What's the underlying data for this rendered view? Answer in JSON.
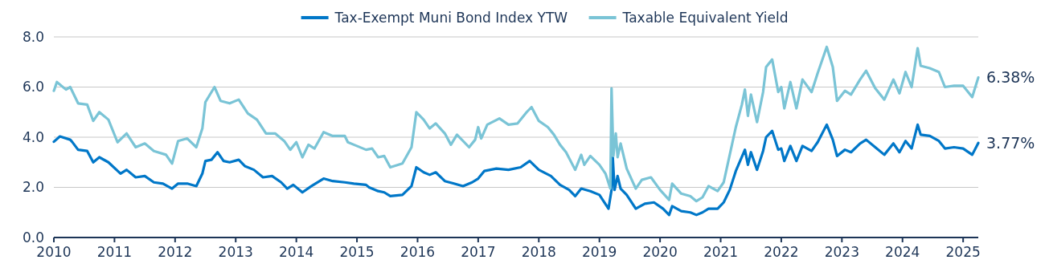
{
  "chart_data": {
    "type": "line",
    "xlim": [
      2010,
      2025.25
    ],
    "xticks": [
      2010,
      2011,
      2012,
      2013,
      2014,
      2015,
      2016,
      2017,
      2018,
      2019,
      2020,
      2021,
      2022,
      2023,
      2024,
      2025
    ],
    "ylim": [
      0,
      8
    ],
    "yticks": [
      {
        "value": 0,
        "label": "0.0"
      },
      {
        "value": 2,
        "label": "2.0"
      },
      {
        "value": 4,
        "label": "4.0"
      },
      {
        "value": 6,
        "label": "6.0"
      },
      {
        "value": 8,
        "label": "8.0"
      }
    ],
    "grid": "y",
    "legend": "top",
    "marker": "none",
    "line_style": "solid",
    "annotations": [
      {
        "text": "6.38%",
        "x": 2025.25,
        "y": 6.38
      },
      {
        "text": "3.77%",
        "x": 2025.25,
        "y": 3.77
      }
    ],
    "series": [
      {
        "name": "Tax-Exempt Muni Bond Index YTW",
        "color": "#0077c8",
        "x": [
          2010,
          2010.1,
          2010.27,
          2010.3,
          2010.4,
          2010.55,
          2010.65,
          2010.75,
          2010.9,
          2011.1,
          2011.2,
          2011.35,
          2011.5,
          2011.65,
          2011.8,
          2011.95,
          2012.05,
          2012.2,
          2012.35,
          2012.45,
          2012.5,
          2012.6,
          2012.7,
          2012.8,
          2012.9,
          2013.05,
          2013.15,
          2013.3,
          2013.45,
          2013.6,
          2013.75,
          2013.85,
          2013.95,
          2014.1,
          2014.25,
          2014.45,
          2014.6,
          2014.8,
          2014.95,
          2015.15,
          2015.2,
          2015.35,
          2015.45,
          2015.55,
          2015.75,
          2015.9,
          2015.98,
          2016.1,
          2016.2,
          2016.3,
          2016.45,
          2016.6,
          2016.75,
          2016.9,
          2017,
          2017.1,
          2017.3,
          2017.5,
          2017.7,
          2017.85,
          2018,
          2018.2,
          2018.35,
          2018.5,
          2018.6,
          2018.7,
          2018.85,
          2019,
          2019.15,
          2019.2,
          2019.22,
          2019.25,
          2019.3,
          2019.35,
          2019.45,
          2019.6,
          2019.75,
          2019.9,
          2020.05,
          2020.15,
          2020.2,
          2020.35,
          2020.5,
          2020.6,
          2020.7,
          2020.8,
          2020.95,
          2021.05,
          2021.15,
          2021.25,
          2021.4,
          2021.45,
          2021.5,
          2021.6,
          2021.7,
          2021.75,
          2021.85,
          2021.95,
          2022,
          2022.05,
          2022.15,
          2022.25,
          2022.35,
          2022.5,
          2022.6,
          2022.75,
          2022.85,
          2022.92,
          2023.05,
          2023.15,
          2023.3,
          2023.4,
          2023.55,
          2023.7,
          2023.85,
          2023.95,
          2024.05,
          2024.15,
          2024.25,
          2024.3,
          2024.45,
          2024.6,
          2024.7,
          2024.85,
          2025,
          2025.15,
          2025.25
        ],
        "values": [
          3.82,
          4.03,
          3.9,
          3.82,
          3.5,
          3.45,
          3.0,
          3.2,
          3.0,
          2.55,
          2.7,
          2.4,
          2.45,
          2.2,
          2.15,
          1.95,
          2.15,
          2.15,
          2.05,
          2.55,
          3.05,
          3.1,
          3.4,
          3.05,
          3.0,
          3.1,
          2.85,
          2.7,
          2.4,
          2.45,
          2.2,
          1.95,
          2.1,
          1.8,
          2.05,
          2.35,
          2.25,
          2.2,
          2.15,
          2.1,
          2.0,
          1.85,
          1.8,
          1.65,
          1.7,
          2.05,
          2.8,
          2.6,
          2.5,
          2.6,
          2.25,
          2.15,
          2.05,
          2.2,
          2.35,
          2.65,
          2.75,
          2.7,
          2.8,
          3.05,
          2.7,
          2.45,
          2.1,
          1.9,
          1.65,
          1.95,
          1.85,
          1.7,
          1.15,
          1.9,
          3.2,
          1.9,
          2.45,
          1.95,
          1.7,
          1.15,
          1.35,
          1.4,
          1.15,
          0.9,
          1.25,
          1.05,
          1.0,
          0.9,
          1.0,
          1.15,
          1.15,
          1.4,
          1.9,
          2.65,
          3.5,
          2.9,
          3.4,
          2.7,
          3.45,
          4.0,
          4.25,
          3.5,
          3.55,
          3.05,
          3.65,
          3.05,
          3.65,
          3.45,
          3.8,
          4.5,
          3.9,
          3.25,
          3.5,
          3.4,
          3.75,
          3.9,
          3.6,
          3.3,
          3.75,
          3.4,
          3.85,
          3.55,
          4.5,
          4.1,
          4.05,
          3.85,
          3.55,
          3.6,
          3.55,
          3.3,
          3.77
        ]
      },
      {
        "name": "Taxable Equivalent Yield",
        "color": "#7ac4d6",
        "x": [
          2010,
          2010.05,
          2010.2,
          2010.27,
          2010.4,
          2010.55,
          2010.65,
          2010.75,
          2010.9,
          2011.05,
          2011.2,
          2011.35,
          2011.5,
          2011.65,
          2011.85,
          2011.95,
          2012.05,
          2012.2,
          2012.35,
          2012.45,
          2012.5,
          2012.65,
          2012.75,
          2012.9,
          2013.05,
          2013.2,
          2013.35,
          2013.5,
          2013.65,
          2013.8,
          2013.9,
          2014,
          2014.1,
          2014.2,
          2014.3,
          2014.45,
          2014.6,
          2014.8,
          2014.85,
          2014.95,
          2015.15,
          2015.25,
          2015.35,
          2015.45,
          2015.55,
          2015.75,
          2015.9,
          2015.98,
          2016.1,
          2016.2,
          2016.3,
          2016.45,
          2016.55,
          2016.65,
          2016.85,
          2016.95,
          2017,
          2017.05,
          2017.15,
          2017.35,
          2017.5,
          2017.65,
          2017.8,
          2017.88,
          2018,
          2018.15,
          2018.25,
          2018.35,
          2018.45,
          2018.6,
          2018.7,
          2018.75,
          2018.85,
          2019,
          2019.1,
          2019.18,
          2019.2,
          2019.23,
          2019.27,
          2019.3,
          2019.35,
          2019.45,
          2019.6,
          2019.7,
          2019.85,
          2020,
          2020.15,
          2020.2,
          2020.35,
          2020.5,
          2020.6,
          2020.7,
          2020.8,
          2020.95,
          2021.05,
          2021.15,
          2021.25,
          2021.35,
          2021.4,
          2021.45,
          2021.5,
          2021.6,
          2021.7,
          2021.75,
          2021.85,
          2021.95,
          2022,
          2022.05,
          2022.15,
          2022.25,
          2022.35,
          2022.5,
          2022.6,
          2022.75,
          2022.85,
          2022.92,
          2023.05,
          2023.15,
          2023.3,
          2023.4,
          2023.55,
          2023.7,
          2023.85,
          2023.95,
          2024.05,
          2024.15,
          2024.25,
          2024.3,
          2024.45,
          2024.6,
          2024.7,
          2024.85,
          2025,
          2025.15,
          2025.25
        ],
        "values": [
          5.85,
          6.2,
          5.9,
          6.0,
          5.35,
          5.3,
          4.65,
          5.0,
          4.7,
          3.8,
          4.15,
          3.6,
          3.75,
          3.45,
          3.3,
          2.95,
          3.85,
          3.95,
          3.6,
          4.35,
          5.4,
          6.0,
          5.45,
          5.35,
          5.5,
          4.95,
          4.7,
          4.15,
          4.15,
          3.85,
          3.5,
          3.8,
          3.2,
          3.7,
          3.55,
          4.2,
          4.05,
          4.05,
          3.8,
          3.7,
          3.5,
          3.55,
          3.2,
          3.25,
          2.8,
          2.95,
          3.6,
          5.0,
          4.7,
          4.35,
          4.55,
          4.15,
          3.7,
          4.1,
          3.6,
          3.9,
          4.4,
          3.95,
          4.5,
          4.75,
          4.5,
          4.55,
          5.0,
          5.2,
          4.65,
          4.4,
          4.1,
          3.7,
          3.4,
          2.7,
          3.3,
          2.9,
          3.25,
          2.9,
          2.55,
          1.95,
          5.95,
          3.25,
          4.15,
          3.2,
          3.75,
          2.75,
          1.95,
          2.3,
          2.4,
          1.9,
          1.5,
          2.15,
          1.75,
          1.65,
          1.45,
          1.6,
          2.05,
          1.85,
          2.2,
          3.3,
          4.4,
          5.3,
          5.9,
          4.85,
          5.7,
          4.6,
          5.8,
          6.8,
          7.1,
          5.8,
          6.0,
          5.15,
          6.2,
          5.15,
          6.3,
          5.8,
          6.55,
          7.6,
          6.8,
          5.45,
          5.85,
          5.7,
          6.3,
          6.65,
          5.95,
          5.5,
          6.3,
          5.75,
          6.6,
          6.0,
          7.55,
          6.85,
          6.75,
          6.6,
          6.0,
          6.05,
          6.05,
          5.6,
          6.38
        ]
      }
    ]
  }
}
